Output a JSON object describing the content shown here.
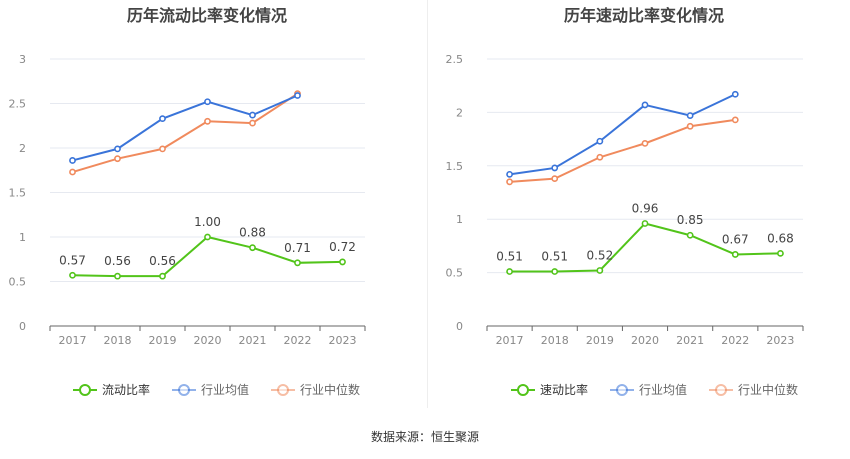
{
  "source_label": "数据来源：恒生聚源",
  "colors": {
    "primary": "#52c41a",
    "industry_avg": "#3a74d9",
    "industry_median": "#f08a5d",
    "grid": "#e6e9f0",
    "axis_text": "#888888",
    "label_text": "#444444",
    "title_text": "#444444"
  },
  "chart_data": [
    {
      "type": "line",
      "title": "历年流动比率变化情况",
      "categories": [
        "2017",
        "2018",
        "2019",
        "2020",
        "2021",
        "2022",
        "2023"
      ],
      "ylim": [
        0,
        3
      ],
      "yticks": [
        "0",
        "0.5",
        "1",
        "1.5",
        "2",
        "2.5",
        "3"
      ],
      "ytick_values": [
        0,
        0.5,
        1,
        1.5,
        2,
        2.5,
        3
      ],
      "series": [
        {
          "name": "流动比率",
          "color_key": "primary",
          "labeled": true,
          "labels": [
            "0.57",
            "0.56",
            "0.56",
            "1.00",
            "0.88",
            "0.71",
            "0.72"
          ],
          "values": [
            0.57,
            0.56,
            0.56,
            1.0,
            0.88,
            0.71,
            0.72
          ]
        },
        {
          "name": "行业均值",
          "color_key": "industry_avg",
          "labeled": false,
          "values": [
            1.86,
            1.99,
            2.33,
            2.52,
            2.37,
            2.59,
            null
          ]
        },
        {
          "name": "行业中位数",
          "color_key": "industry_median",
          "labeled": false,
          "values": [
            1.73,
            1.88,
            1.99,
            2.3,
            2.28,
            2.61,
            null
          ]
        }
      ]
    },
    {
      "type": "line",
      "title": "历年速动比率变化情况",
      "categories": [
        "2017",
        "2018",
        "2019",
        "2020",
        "2021",
        "2022",
        "2023"
      ],
      "ylim": [
        0,
        2.5
      ],
      "yticks": [
        "0",
        "0.5",
        "1",
        "1.5",
        "2",
        "2.5"
      ],
      "ytick_values": [
        0,
        0.5,
        1,
        1.5,
        2,
        2.5
      ],
      "series": [
        {
          "name": "速动比率",
          "color_key": "primary",
          "labeled": true,
          "labels": [
            "0.51",
            "0.51",
            "0.52",
            "0.96",
            "0.85",
            "0.67",
            "0.68"
          ],
          "values": [
            0.51,
            0.51,
            0.52,
            0.96,
            0.85,
            0.67,
            0.68
          ]
        },
        {
          "name": "行业均值",
          "color_key": "industry_avg",
          "labeled": false,
          "values": [
            1.42,
            1.48,
            1.73,
            2.07,
            1.97,
            2.17,
            null
          ]
        },
        {
          "name": "行业中位数",
          "color_key": "industry_median",
          "labeled": false,
          "values": [
            1.35,
            1.38,
            1.58,
            1.71,
            1.87,
            1.93,
            null
          ]
        }
      ]
    }
  ]
}
